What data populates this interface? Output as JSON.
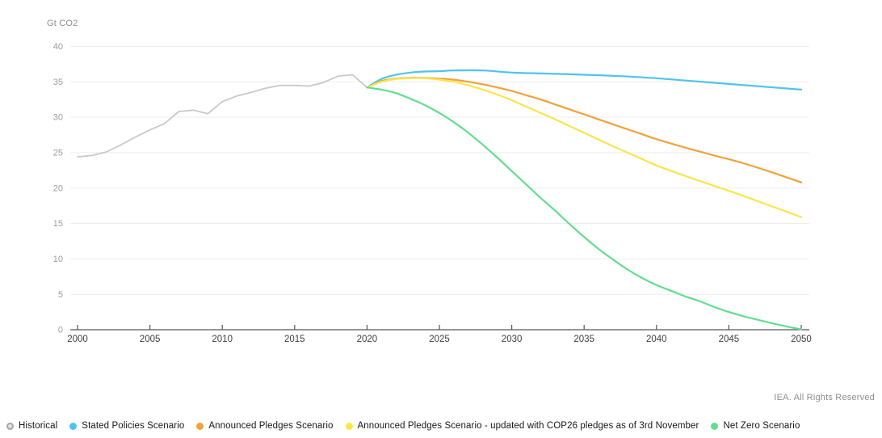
{
  "header": {
    "unit_label": "Gt CO2"
  },
  "footer": {
    "copyright": "IEA. All Rights Reserved"
  },
  "colors": {
    "background": "#ffffff",
    "gridline": "#ededed",
    "axis": "#55565a",
    "x_tick_label": "#3d3d3d",
    "y_tick_label": "#9b9b9b",
    "historical": "#c9c9c9",
    "stated_policies": "#4ec3ef",
    "announced_pledges": "#f2a13b",
    "announced_pledges_cop26": "#f8e64b",
    "net_zero": "#63dd91"
  },
  "chart_data": {
    "type": "line",
    "title": "",
    "xlabel": "",
    "ylabel": "Gt CO2",
    "xlim": [
      2000,
      2050
    ],
    "ylim": [
      0,
      40
    ],
    "xticks": [
      2000,
      2005,
      2010,
      2015,
      2020,
      2025,
      2030,
      2035,
      2040,
      2045,
      2050
    ],
    "yticks": [
      0,
      5,
      10,
      15,
      20,
      25,
      30,
      35,
      40
    ],
    "grid": "horizontal",
    "legend_position": "bottom",
    "series": [
      {
        "name": "Historical",
        "slug": "historical",
        "color": "#c9c9c9",
        "marker": "ring",
        "marker_border": "#a6a6a6",
        "marker_fill": "#e3e3e3",
        "width": 1.8,
        "smooth": false,
        "x": [
          2000,
          2001,
          2002,
          2003,
          2004,
          2005,
          2006,
          2007,
          2008,
          2009,
          2010,
          2011,
          2012,
          2013,
          2014,
          2015,
          2016,
          2017,
          2018,
          2019,
          2020
        ],
        "y": [
          24.4,
          24.6,
          25.1,
          26.1,
          27.2,
          28.2,
          29.1,
          30.8,
          31.0,
          30.5,
          32.2,
          33.0,
          33.5,
          34.1,
          34.5,
          34.5,
          34.4,
          34.9,
          35.8,
          36.0,
          34.2
        ]
      },
      {
        "name": "Stated Policies Scenario",
        "slug": "steps",
        "color": "#4ec3ef",
        "marker": "solid",
        "width": 2.2,
        "smooth": true,
        "x": [
          2020,
          2021,
          2022,
          2023,
          2024,
          2025,
          2026,
          2028,
          2030,
          2032.5,
          2035,
          2037.5,
          2040,
          2042.5,
          2045,
          2047.5,
          2050
        ],
        "y": [
          34.2,
          35.4,
          36.0,
          36.3,
          36.45,
          36.5,
          36.6,
          36.6,
          36.3,
          36.15,
          36.0,
          35.8,
          35.5,
          35.1,
          34.7,
          34.3,
          33.9
        ]
      },
      {
        "name": "Announced Pledges Scenario",
        "slug": "aps",
        "color": "#f2a13b",
        "marker": "solid",
        "width": 2.2,
        "smooth": true,
        "x": [
          2020,
          2021,
          2022,
          2023,
          2024,
          2025,
          2026,
          2027,
          2028,
          2029,
          2030,
          2031,
          2032,
          2033,
          2034,
          2035,
          2036,
          2037,
          2038,
          2039,
          2040,
          2042,
          2044,
          2046,
          2048,
          2050
        ],
        "y": [
          34.2,
          35.1,
          35.45,
          35.55,
          35.55,
          35.45,
          35.3,
          35.0,
          34.65,
          34.2,
          33.7,
          33.1,
          32.5,
          31.8,
          31.1,
          30.4,
          29.7,
          29.0,
          28.3,
          27.6,
          26.9,
          25.7,
          24.6,
          23.5,
          22.2,
          20.8
        ]
      },
      {
        "name": "Announced Pledges Scenario - updated with COP26 pledges as of 3rd November",
        "slug": "aps-cop26",
        "color": "#f8e64b",
        "marker": "solid",
        "width": 2.2,
        "smooth": true,
        "x": [
          2020,
          2021,
          2022,
          2023,
          2024,
          2025,
          2026,
          2027,
          2028,
          2029,
          2030,
          2031,
          2032,
          2033,
          2034,
          2035,
          2036,
          2037,
          2038,
          2039,
          2040,
          2042,
          2044,
          2046,
          2048,
          2050
        ],
        "y": [
          34.2,
          35.0,
          35.4,
          35.5,
          35.5,
          35.3,
          35.0,
          34.5,
          33.9,
          33.2,
          32.4,
          31.5,
          30.6,
          29.7,
          28.75,
          27.8,
          26.85,
          25.9,
          25.0,
          24.1,
          23.2,
          21.7,
          20.3,
          18.9,
          17.4,
          15.9
        ]
      },
      {
        "name": "Net Zero Scenario",
        "slug": "nze",
        "color": "#63dd91",
        "marker": "solid",
        "width": 2.2,
        "smooth": true,
        "x": [
          2020,
          2021,
          2022,
          2023,
          2024,
          2025,
          2026,
          2027,
          2028,
          2029,
          2030,
          2031,
          2032,
          2033,
          2034,
          2035,
          2036,
          2037,
          2038,
          2039,
          2040,
          2041,
          2042,
          2043,
          2044,
          2045,
          2046,
          2047,
          2048,
          2049,
          2050
        ],
        "y": [
          34.2,
          33.9,
          33.4,
          32.6,
          31.7,
          30.6,
          29.3,
          27.8,
          26.1,
          24.3,
          22.4,
          20.5,
          18.6,
          16.8,
          14.9,
          13.1,
          11.4,
          9.9,
          8.5,
          7.3,
          6.3,
          5.5,
          4.7,
          4.0,
          3.2,
          2.5,
          1.9,
          1.4,
          0.9,
          0.45,
          0.05
        ]
      }
    ]
  }
}
